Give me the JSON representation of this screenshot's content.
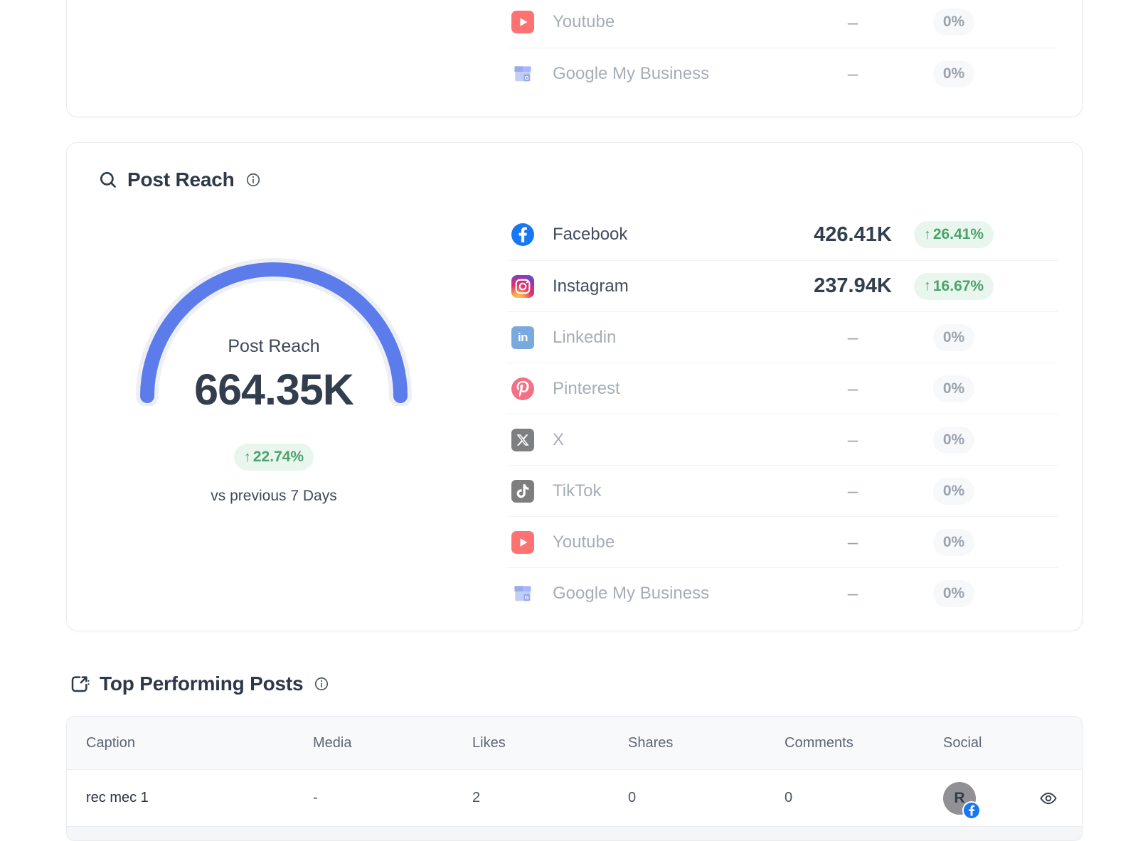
{
  "colors": {
    "gauge_arc": "#5b7cea",
    "gauge_track": "#edeff5",
    "positive_green": "#4ba36a",
    "positive_green_bg": "#e9f6ee",
    "muted_gray": "#9ca3ae",
    "facebook_blue": "#1877f2"
  },
  "previous_card": {
    "rows": [
      {
        "platform": "Youtube",
        "icon": "youtube-icon",
        "value": "–",
        "change": "0%",
        "direction": "none",
        "active": false
      },
      {
        "platform": "Google My Business",
        "icon": "google-my-business-icon",
        "value": "–",
        "change": "0%",
        "direction": "none",
        "active": false
      }
    ]
  },
  "post_reach": {
    "title": "Post Reach",
    "gauge": {
      "label": "Post Reach",
      "value": "664.35K",
      "change": "22.74%",
      "direction": "up",
      "compare_label": "vs previous 7 Days"
    },
    "rows": [
      {
        "platform": "Facebook",
        "icon": "facebook-icon",
        "value": "426.41K",
        "change": "26.41%",
        "direction": "up",
        "active": true
      },
      {
        "platform": "Instagram",
        "icon": "instagram-icon",
        "value": "237.94K",
        "change": "16.67%",
        "direction": "up",
        "active": true
      },
      {
        "platform": "Linkedin",
        "icon": "linkedin-icon",
        "value": "–",
        "change": "0%",
        "direction": "none",
        "active": false
      },
      {
        "platform": "Pinterest",
        "icon": "pinterest-icon",
        "value": "–",
        "change": "0%",
        "direction": "none",
        "active": false
      },
      {
        "platform": "X",
        "icon": "x-icon",
        "value": "–",
        "change": "0%",
        "direction": "none",
        "active": false
      },
      {
        "platform": "TikTok",
        "icon": "tiktok-icon",
        "value": "–",
        "change": "0%",
        "direction": "none",
        "active": false
      },
      {
        "platform": "Youtube",
        "icon": "youtube-icon",
        "value": "–",
        "change": "0%",
        "direction": "none",
        "active": false
      },
      {
        "platform": "Google My Business",
        "icon": "google-my-business-icon",
        "value": "–",
        "change": "0%",
        "direction": "none",
        "active": false
      }
    ]
  },
  "top_posts": {
    "title": "Top Performing Posts",
    "columns": [
      "Caption",
      "Media",
      "Likes",
      "Shares",
      "Comments",
      "Social"
    ],
    "rows": [
      {
        "caption": "rec mec 1",
        "media": "-",
        "likes": "2",
        "shares": "0",
        "comments": "0",
        "social": {
          "initial": "R",
          "network": "facebook"
        }
      }
    ]
  }
}
